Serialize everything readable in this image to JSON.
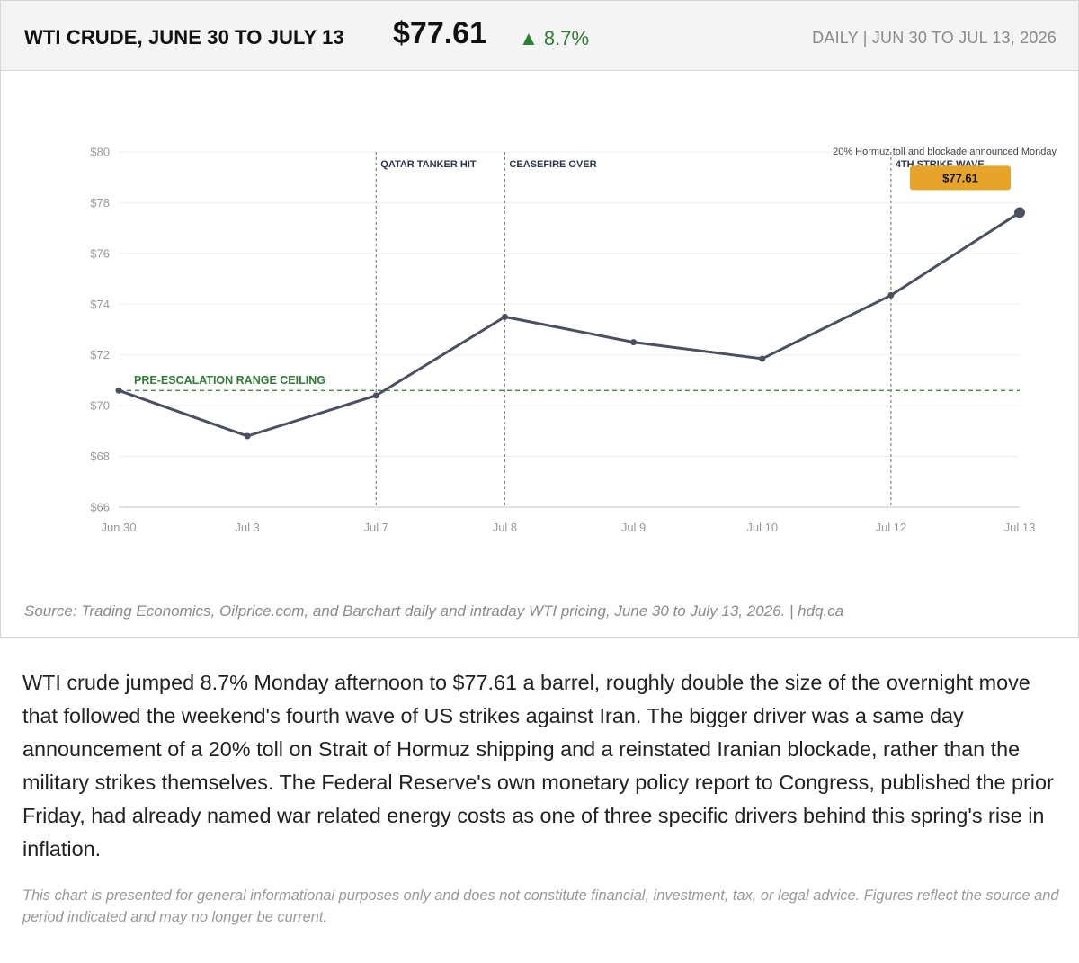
{
  "header": {
    "title": "WTI CRUDE, JUNE 30 TO JULY 13",
    "price": "$77.61",
    "change": "▲ 8.7%",
    "meta": "DAILY  |  JUN 30 TO JUL 13, 2026"
  },
  "chart_data": {
    "type": "line",
    "x": [
      "Jun 30",
      "Jul 3",
      "Jul 7",
      "Jul 8",
      "Jul 9",
      "Jul 10",
      "Jul 12",
      "Jul 13"
    ],
    "series": [
      {
        "values": [
          70.6,
          68.8,
          70.4,
          73.5,
          72.5,
          71.85,
          74.35,
          77.61
        ]
      }
    ],
    "ylim": [
      66,
      80
    ],
    "yticks": [
      66,
      68,
      70,
      72,
      74,
      76,
      78,
      80
    ],
    "ytick_labels": [
      "$66",
      "$68",
      "$70",
      "$72",
      "$74",
      "$76",
      "$78",
      "$80"
    ],
    "grid": true,
    "reference_line": {
      "value": 70.6,
      "label": "PRE-ESCALATION RANGE CEILING",
      "color": "#2e7d32"
    },
    "events": [
      {
        "x": "Jul 7",
        "label": "QATAR TANKER HIT"
      },
      {
        "x": "Jul 8",
        "label": "CEASEFIRE OVER"
      },
      {
        "x": "Jul 12",
        "label": "4TH STRIKE WAVE",
        "note": "20% Hormuz toll and blockade announced Monday"
      }
    ],
    "last_value_label": "$77.61",
    "line_color": "#4a5060",
    "badge_color": "#e6a52a"
  },
  "source": "Source: Trading Economics, Oilprice.com, and Barchart daily and intraday WTI pricing, June 30 to July 13, 2026.  |  hdq.ca",
  "body_text": "WTI crude jumped 8.7% Monday afternoon to $77.61 a barrel, roughly double the size of the overnight move that followed the weekend's fourth wave of US strikes against Iran. The bigger driver was a same day announcement of a 20% toll on Strait of Hormuz shipping and a reinstated Iranian blockade, rather than the military strikes themselves. The Federal Reserve's own monetary policy report to Congress, published the prior Friday, had already named war related energy costs as one of three specific drivers behind this spring's rise in inflation.",
  "disclaimer": "This chart is presented for general informational purposes only and does not constitute financial, investment, tax, or legal advice. Figures reflect the source and period indicated and may no longer be current."
}
